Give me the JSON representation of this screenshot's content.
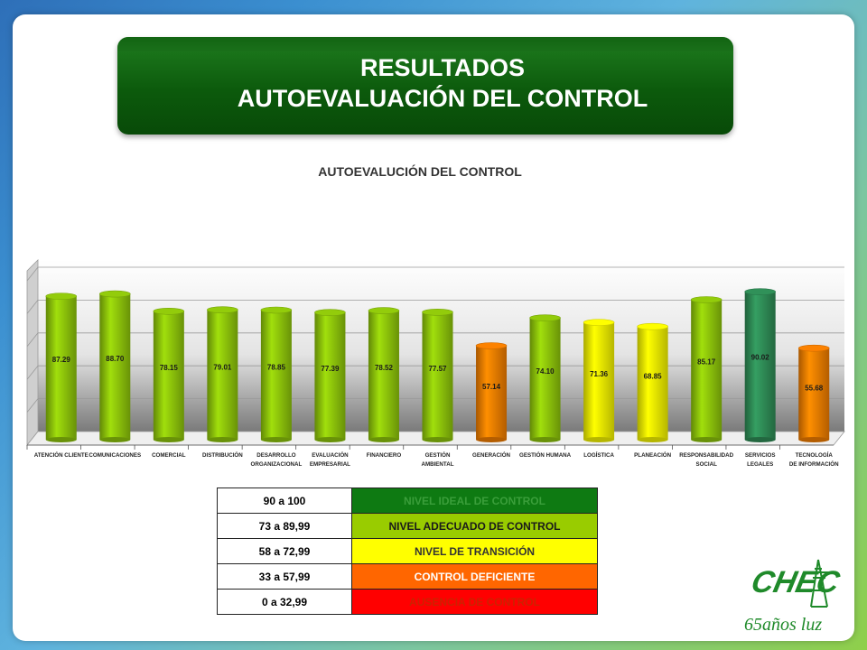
{
  "title": {
    "line1": "RESULTADOS",
    "line2": "AUTOEVALUACIÓN DEL CONTROL"
  },
  "chart_data": {
    "type": "bar",
    "title": "AUTOEVALUCIÓN DEL CONTROL",
    "categories": [
      "ATENCIÓN CLIENTE",
      "COMUNICACIONES",
      "COMERCIAL",
      "DISTRIBUCIÓN",
      "DESARROLLO ORGANIZACIONAL",
      "EVALUACIÓN EMPRESARIAL",
      "FINANCIERO",
      "GESTIÓN AMBIENTAL",
      "GENERACIÓN",
      "GESTIÓN HUMANA",
      "LOGÍSTICA",
      "PLANEACIÓN",
      "RESPONSABILIDAD SOCIAL",
      "SERVICIOS LEGALES",
      "TECNOLOGÍA DE INFORMACIÓN"
    ],
    "values": [
      87.29,
      88.7,
      78.15,
      79.01,
      78.85,
      77.39,
      78.52,
      77.57,
      57.14,
      74.1,
      71.36,
      68.85,
      85.17,
      90.02,
      55.68
    ],
    "value_labels": [
      "87.29",
      "88.70",
      "78.15",
      "79.01",
      "78.85",
      "77.39",
      "78.52",
      "77.57",
      "57.14",
      "74.10",
      "71.36",
      "68.85",
      "85.17",
      "90.02",
      "55.68"
    ],
    "bar_colors": [
      "#8cc20a",
      "#8cc20a",
      "#8cc20a",
      "#8cc20a",
      "#8cc20a",
      "#8cc20a",
      "#8cc20a",
      "#8cc20a",
      "#f07c00",
      "#8cc20a",
      "#f2f200",
      "#f2f200",
      "#8cc20a",
      "#2e8a55",
      "#f07c00"
    ],
    "grid": true
  },
  "legend": [
    {
      "range": "90 a 100",
      "label": "NIVEL IDEAL DE CONTROL",
      "color": "#0e7a12",
      "text_color": "#3a9e3a"
    },
    {
      "range": "73 a 89,99",
      "label": "NIVEL ADECUADO DE CONTROL",
      "color": "#99cc00",
      "text_color": "#1a1a1a"
    },
    {
      "range": "58 a 72,99",
      "label": "NIVEL DE TRANSICIÓN",
      "color": "#ffff00",
      "text_color": "#333333"
    },
    {
      "range": "33 a 57,99",
      "label": "CONTROL DEFICIENTE",
      "color": "#ff6600",
      "text_color": "#ffffff"
    },
    {
      "range": "0 a 32,99",
      "label": "AUSENCIA DE CONTROL",
      "color": "#ff0000",
      "text_color": "#cc2200"
    }
  ],
  "logo": {
    "text": "CHEC",
    "tagline": "65años luz"
  }
}
